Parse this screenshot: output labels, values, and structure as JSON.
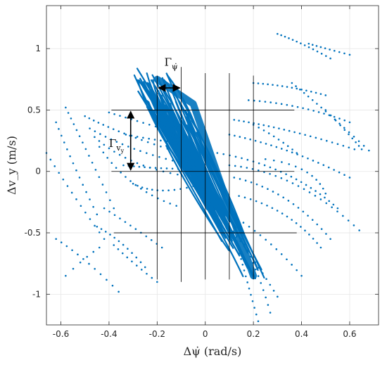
{
  "chart_data": {
    "type": "scatter",
    "xlabel": "Δψ̇ (rad/s)",
    "ylabel": "Δv_y (m/s)",
    "xlim": [
      -0.66,
      0.72
    ],
    "ylim": [
      -1.25,
      1.35
    ],
    "x_ticks": [
      -0.6,
      -0.4,
      -0.2,
      0,
      0.2,
      0.4,
      0.6
    ],
    "x_tick_labels": [
      "-0.6",
      "-0.4",
      "-0.2",
      "0",
      "0.2",
      "0.4",
      "0.6"
    ],
    "y_ticks": [
      -1,
      -0.5,
      0,
      0.5,
      1
    ],
    "y_tick_labels": [
      "-1",
      "-0.5",
      "0",
      "0.5",
      "1"
    ],
    "grid": true,
    "series_color": "#0072BD",
    "overlay_color": "#000000",
    "dense_band": {
      "description": "dense trajectory band",
      "upper_left": [
        -0.23,
        0.8
      ],
      "lower_right": [
        0.2,
        -0.85
      ]
    },
    "partition_lines": {
      "horizontal": [
        {
          "y": 0.5,
          "x_from": -0.39,
          "x_to": 0.37
        },
        {
          "y": 0.0,
          "x_from": -0.39,
          "x_to": 0.37
        },
        {
          "y": -0.5,
          "x_from": -0.38,
          "x_to": 0.38
        }
      ],
      "vertical": [
        {
          "x": -0.2,
          "y_from": -0.88,
          "y_to": 0.78
        },
        {
          "x": -0.1,
          "y_from": -0.9,
          "y_to": 0.85
        },
        {
          "x": 0.0,
          "y_from": -0.88,
          "y_to": 0.8
        },
        {
          "x": 0.1,
          "y_from": -0.88,
          "y_to": 0.8
        },
        {
          "x": 0.2,
          "y_from": -0.88,
          "y_to": 0.78
        }
      ]
    },
    "annotations": [
      {
        "label": "Γψ̇",
        "main": "Γ",
        "sub": "ψ̇",
        "arrow_from": [
          -0.2,
          0.68
        ],
        "arrow_to": [
          -0.1,
          0.68
        ]
      },
      {
        "label": "Γvy",
        "main": "Γ",
        "sub": "v",
        "subsub": "y",
        "arrow_from": [
          -0.31,
          0.5
        ],
        "arrow_to": [
          -0.31,
          0.0
        ]
      }
    ],
    "point_trajectories": [
      {
        "from": [
          -0.58,
          0.52
        ],
        "ctrl": [
          -0.5,
          0.2
        ],
        "to": [
          -0.38,
          -0.3
        ],
        "n": 16
      },
      {
        "from": [
          -0.62,
          0.4
        ],
        "ctrl": [
          -0.55,
          0.05
        ],
        "to": [
          -0.45,
          -0.35
        ],
        "n": 14
      },
      {
        "from": [
          -0.66,
          0.15
        ],
        "ctrl": [
          -0.55,
          -0.2
        ],
        "to": [
          -0.42,
          -0.55
        ],
        "n": 14
      },
      {
        "from": [
          -0.62,
          -0.55
        ],
        "ctrl": [
          -0.5,
          -0.7
        ],
        "to": [
          -0.36,
          -0.98
        ],
        "n": 12
      },
      {
        "from": [
          -0.58,
          -0.85
        ],
        "ctrl": [
          -0.5,
          -0.7
        ],
        "to": [
          -0.44,
          -0.62
        ],
        "n": 6
      },
      {
        "from": [
          -0.5,
          0.45
        ],
        "ctrl": [
          -0.35,
          0.3
        ],
        "to": [
          -0.1,
          0.15
        ],
        "n": 18
      },
      {
        "from": [
          -0.48,
          0.35
        ],
        "ctrl": [
          -0.3,
          0.15
        ],
        "to": [
          -0.05,
          0.05
        ],
        "n": 18
      },
      {
        "from": [
          -0.46,
          0.28
        ],
        "ctrl": [
          -0.3,
          0.0
        ],
        "to": [
          -0.02,
          -0.05
        ],
        "n": 18
      },
      {
        "from": [
          -0.44,
          0.2
        ],
        "ctrl": [
          -0.32,
          -0.15
        ],
        "to": [
          -0.12,
          -0.28
        ],
        "n": 16
      },
      {
        "from": [
          -0.45,
          -0.45
        ],
        "ctrl": [
          -0.35,
          -0.55
        ],
        "to": [
          -0.25,
          -0.78
        ],
        "n": 12
      },
      {
        "from": [
          -0.42,
          -0.3
        ],
        "ctrl": [
          -0.3,
          -0.45
        ],
        "to": [
          -0.18,
          -0.62
        ],
        "n": 12
      },
      {
        "from": [
          -0.4,
          0.48
        ],
        "ctrl": [
          -0.3,
          0.42
        ],
        "to": [
          -0.18,
          0.35
        ],
        "n": 10
      },
      {
        "from": [
          -0.38,
          -0.6
        ],
        "ctrl": [
          -0.3,
          -0.75
        ],
        "to": [
          -0.2,
          -0.9
        ],
        "n": 10
      },
      {
        "from": [
          -0.34,
          0.05
        ],
        "ctrl": [
          -0.2,
          0.02
        ],
        "to": [
          -0.04,
          0.02
        ],
        "n": 14
      },
      {
        "from": [
          -0.3,
          -0.1
        ],
        "ctrl": [
          -0.2,
          -0.2
        ],
        "to": [
          -0.05,
          -0.12
        ],
        "n": 12
      },
      {
        "from": [
          -0.33,
          0.3
        ],
        "ctrl": [
          -0.2,
          0.25
        ],
        "to": [
          -0.06,
          0.22
        ],
        "n": 12
      },
      {
        "from": [
          0.3,
          1.12
        ],
        "ctrl": [
          0.4,
          1.05
        ],
        "to": [
          0.52,
          0.92
        ],
        "n": 14
      },
      {
        "from": [
          0.43,
          1.04
        ],
        "ctrl": [
          0.5,
          1.0
        ],
        "to": [
          0.6,
          0.95
        ],
        "n": 10
      },
      {
        "from": [
          0.2,
          0.72
        ],
        "ctrl": [
          0.35,
          0.7
        ],
        "to": [
          0.5,
          0.62
        ],
        "n": 16
      },
      {
        "from": [
          0.18,
          0.58
        ],
        "ctrl": [
          0.4,
          0.55
        ],
        "to": [
          0.6,
          0.4
        ],
        "n": 20
      },
      {
        "from": [
          0.36,
          0.72
        ],
        "ctrl": [
          0.5,
          0.5
        ],
        "to": [
          0.68,
          0.17
        ],
        "n": 18
      },
      {
        "from": [
          0.5,
          0.5
        ],
        "ctrl": [
          0.6,
          0.3
        ],
        "to": [
          0.65,
          0.18
        ],
        "n": 10
      },
      {
        "from": [
          0.12,
          0.42
        ],
        "ctrl": [
          0.35,
          0.35
        ],
        "to": [
          0.62,
          0.18
        ],
        "n": 24
      },
      {
        "from": [
          0.1,
          0.3
        ],
        "ctrl": [
          0.35,
          0.2
        ],
        "to": [
          0.6,
          -0.05
        ],
        "n": 24
      },
      {
        "from": [
          0.05,
          0.15
        ],
        "ctrl": [
          0.35,
          0.05
        ],
        "to": [
          0.55,
          -0.3
        ],
        "n": 24
      },
      {
        "from": [
          0.1,
          0.05
        ],
        "ctrl": [
          0.38,
          0.0
        ],
        "to": [
          0.64,
          -0.48
        ],
        "n": 24
      },
      {
        "from": [
          0.12,
          -0.05
        ],
        "ctrl": [
          0.35,
          -0.15
        ],
        "to": [
          0.52,
          -0.55
        ],
        "n": 20
      },
      {
        "from": [
          0.14,
          -0.2
        ],
        "ctrl": [
          0.35,
          -0.3
        ],
        "to": [
          0.48,
          -0.62
        ],
        "n": 18
      },
      {
        "from": [
          0.25,
          0.1
        ],
        "ctrl": [
          0.45,
          0.05
        ],
        "to": [
          0.5,
          -0.18
        ],
        "n": 12
      },
      {
        "from": [
          0.06,
          -0.3
        ],
        "ctrl": [
          0.25,
          -0.5
        ],
        "to": [
          0.4,
          -0.85
        ],
        "n": 16
      },
      {
        "from": [
          0.1,
          -0.45
        ],
        "ctrl": [
          0.2,
          -0.7
        ],
        "to": [
          0.3,
          -1.02
        ],
        "n": 14
      },
      {
        "from": [
          0.12,
          -0.5
        ],
        "ctrl": [
          0.16,
          -0.8
        ],
        "to": [
          0.22,
          -1.22
        ],
        "n": 16
      },
      {
        "from": [
          0.15,
          -0.55
        ],
        "ctrl": [
          0.22,
          -0.8
        ],
        "to": [
          0.27,
          -1.15
        ],
        "n": 12
      },
      {
        "from": [
          0.2,
          0.38
        ],
        "ctrl": [
          0.3,
          0.28
        ],
        "to": [
          0.38,
          0.15
        ],
        "n": 10
      }
    ]
  }
}
